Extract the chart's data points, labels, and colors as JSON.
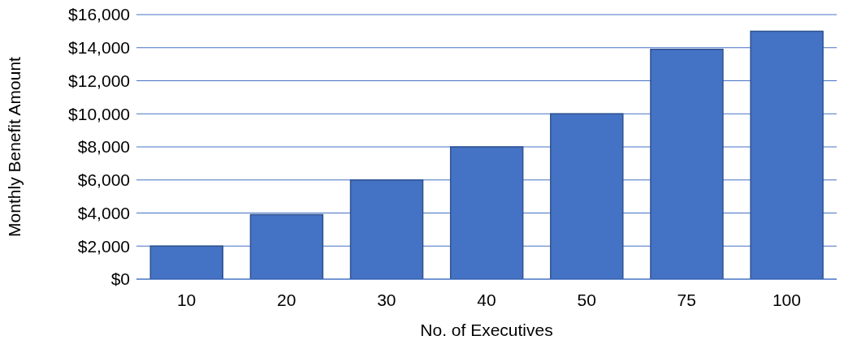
{
  "chart_data": {
    "type": "bar",
    "xlabel": "No. of Executives",
    "ylabel": "Monthly Benefit Amount",
    "categories": [
      "10",
      "20",
      "30",
      "40",
      "50",
      "75",
      "100"
    ],
    "values": [
      2000,
      3900,
      6000,
      8000,
      10000,
      13900,
      15000
    ],
    "color": "#4472c4",
    "ylim": [
      0,
      16000
    ],
    "yticks": [
      {
        "value": 0,
        "label": "$0"
      },
      {
        "value": 2000,
        "label": "$2,000"
      },
      {
        "value": 4000,
        "label": "$4,000"
      },
      {
        "value": 6000,
        "label": "$6,000"
      },
      {
        "value": 8000,
        "label": "$8,000"
      },
      {
        "value": 10000,
        "label": "$10,000"
      },
      {
        "value": 12000,
        "label": "$12,000"
      },
      {
        "value": 14000,
        "label": "$14,000"
      },
      {
        "value": 16000,
        "label": "$16,000"
      }
    ],
    "grid": "y"
  }
}
